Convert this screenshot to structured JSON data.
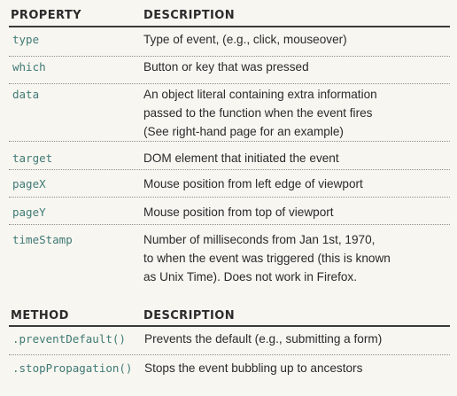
{
  "properties_table": {
    "header_property": "PROPERTY",
    "header_description": "DESCRIPTION",
    "rows": [
      {
        "name": "type",
        "desc_lines": [
          "Type of event, (e.g., click, mouseover)"
        ]
      },
      {
        "name": "which",
        "desc_lines": [
          "Button or key that was pressed"
        ]
      },
      {
        "name": "data",
        "desc_lines": [
          "An object literal containing extra information",
          "passed to the function when the event fires",
          "(See right-hand page for an example)"
        ]
      },
      {
        "name": "target",
        "desc_lines": [
          "DOM element that initiated the event"
        ]
      },
      {
        "name": "pageX",
        "desc_lines": [
          "Mouse position from left edge of viewport"
        ]
      },
      {
        "name": "pageY",
        "desc_lines": [
          "Mouse position from top of viewport"
        ]
      },
      {
        "name": "timeStamp",
        "desc_lines": [
          "Number of milliseconds from Jan 1st, 1970,",
          "to when the event was triggered (this is known",
          "as Unix Time). Does not work in Firefox."
        ]
      }
    ]
  },
  "methods_table": {
    "header_method": "METHOD",
    "header_description": "DESCRIPTION",
    "rows": [
      {
        "name": ".preventDefault()",
        "desc_lines": [
          "Prevents the default (e.g., submitting a form)"
        ]
      },
      {
        "name": ".stopPropagation()",
        "desc_lines": [
          "Stops the event bubbling up to ancestors"
        ]
      }
    ]
  },
  "colors": {
    "code_text": "#3f7a74",
    "body_text": "#2a2a2a",
    "page_background": "#f8f6f1"
  }
}
